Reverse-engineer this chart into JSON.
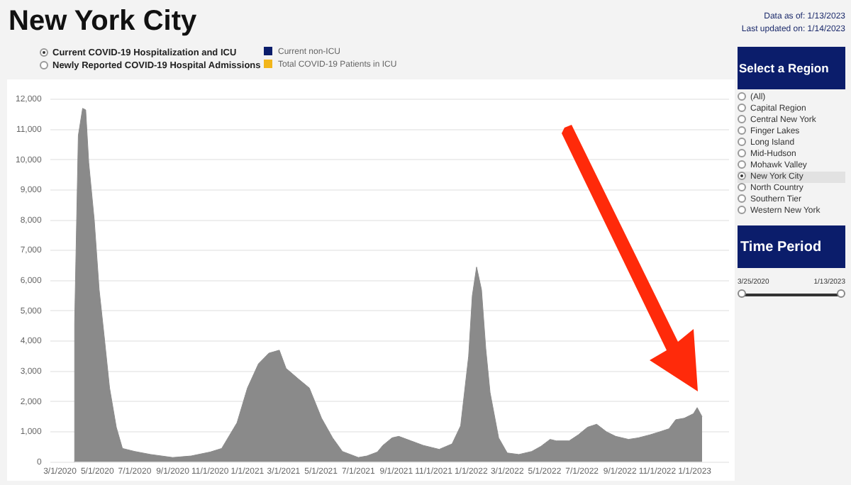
{
  "chart_data": {
    "type": "area",
    "title": "New York City",
    "x": [
      "2020-03-24",
      "2020-03-25",
      "2020-03-31",
      "2020-04-07",
      "2020-04-12",
      "2020-04-17",
      "2020-04-26",
      "2020-05-04",
      "2020-05-12",
      "2020-05-21",
      "2020-06-01",
      "2020-06-11",
      "2020-07-01",
      "2020-07-27",
      "2020-09-01",
      "2020-10-01",
      "2020-11-01",
      "2020-11-20",
      "2020-12-15",
      "2021-01-01",
      "2021-01-19",
      "2021-02-05",
      "2021-02-22",
      "2021-03-05",
      "2021-03-25",
      "2021-04-12",
      "2021-04-25",
      "2021-05-02",
      "2021-05-20",
      "2021-06-05",
      "2021-07-01",
      "2021-07-15",
      "2021-08-01",
      "2021-08-10",
      "2021-08-25",
      "2021-09-05",
      "2021-09-25",
      "2021-10-15",
      "2021-11-10",
      "2021-12-01",
      "2021-12-15",
      "2021-12-28",
      "2022-01-03",
      "2022-01-10",
      "2022-01-18",
      "2022-01-25",
      "2022-02-01",
      "2022-02-15",
      "2022-03-01",
      "2022-03-20",
      "2022-04-10",
      "2022-04-25",
      "2022-05-10",
      "2022-05-20",
      "2022-06-10",
      "2022-06-25",
      "2022-07-10",
      "2022-07-25",
      "2022-08-10",
      "2022-08-25",
      "2022-09-15",
      "2022-10-01",
      "2022-10-20",
      "2022-11-05",
      "2022-11-20",
      "2022-12-01",
      "2022-12-15",
      "2022-12-30",
      "2023-01-05",
      "2023-01-13"
    ],
    "values": [
      0,
      4600,
      10800,
      11700,
      11650,
      9900,
      8000,
      5700,
      4200,
      2450,
      1150,
      450,
      350,
      250,
      150,
      200,
      330,
      450,
      1300,
      2450,
      3250,
      3600,
      3700,
      3100,
      2750,
      2450,
      1800,
      1450,
      800,
      350,
      150,
      200,
      330,
      550,
      800,
      850,
      700,
      550,
      420,
      600,
      1200,
      3500,
      5500,
      6450,
      5700,
      3750,
      2300,
      800,
      300,
      250,
      350,
      520,
      750,
      700,
      700,
      900,
      1150,
      1250,
      1000,
      850,
      750,
      800,
      900,
      1000,
      1100,
      1400,
      1450,
      1600,
      1800,
      1500
    ],
    "color": "#8a8a8a",
    "xlim": [
      "2020-02-14",
      "2023-02-26"
    ],
    "xticks": [
      {
        "value": "2020-03-01",
        "label": "3/1/2020"
      },
      {
        "value": "2020-05-01",
        "label": "5/1/2020"
      },
      {
        "value": "2020-07-01",
        "label": "7/1/2020"
      },
      {
        "value": "2020-09-01",
        "label": "9/1/2020"
      },
      {
        "value": "2020-11-01",
        "label": "11/1/2020"
      },
      {
        "value": "2021-01-01",
        "label": "1/1/2021"
      },
      {
        "value": "2021-03-01",
        "label": "3/1/2021"
      },
      {
        "value": "2021-05-01",
        "label": "5/1/2021"
      },
      {
        "value": "2021-07-01",
        "label": "7/1/2021"
      },
      {
        "value": "2021-09-01",
        "label": "9/1/2021"
      },
      {
        "value": "2021-11-01",
        "label": "11/1/2021"
      },
      {
        "value": "2022-01-01",
        "label": "1/1/2022"
      },
      {
        "value": "2022-03-01",
        "label": "3/1/2022"
      },
      {
        "value": "2022-05-01",
        "label": "5/1/2022"
      },
      {
        "value": "2022-07-01",
        "label": "7/1/2022"
      },
      {
        "value": "2022-09-01",
        "label": "9/1/2022"
      },
      {
        "value": "2022-11-01",
        "label": "11/1/2022"
      },
      {
        "value": "2023-01-01",
        "label": "1/1/2023"
      }
    ],
    "ylim": [
      0,
      12000
    ],
    "yticks": [
      {
        "value": 0,
        "label": "0"
      },
      {
        "value": 1000,
        "label": "1,000"
      },
      {
        "value": 2000,
        "label": "2,000"
      },
      {
        "value": 3000,
        "label": "3,000"
      },
      {
        "value": 4000,
        "label": "4,000"
      },
      {
        "value": 5000,
        "label": "5,000"
      },
      {
        "value": 6000,
        "label": "6,000"
      },
      {
        "value": 7000,
        "label": "7,000"
      },
      {
        "value": 8000,
        "label": "8,000"
      },
      {
        "value": 9000,
        "label": "9,000"
      },
      {
        "value": 10000,
        "label": "10,000"
      },
      {
        "value": 11000,
        "label": "11,000"
      },
      {
        "value": 12000,
        "label": "12,000"
      }
    ],
    "grid": "y",
    "annotations": [
      "Data as of: 1/13/2023",
      "Last updated on: 1/14/2023",
      "Current COVID-19 Hospitalization and ICU",
      "Newly Reported COVID-19 Hospital Admissions",
      "Current non-ICU",
      "Total COVID-19 Patients in ICU",
      "Select a Region",
      "(All)",
      "Capital Region",
      "Central New York",
      "Finger Lakes",
      "Long Island",
      "Mid-Hudson",
      "Mohawk Valley",
      "New York City",
      "North Country",
      "Southern Tier",
      "Western New York",
      "Time Period",
      "3/25/2020",
      "1/13/2023"
    ]
  }
}
